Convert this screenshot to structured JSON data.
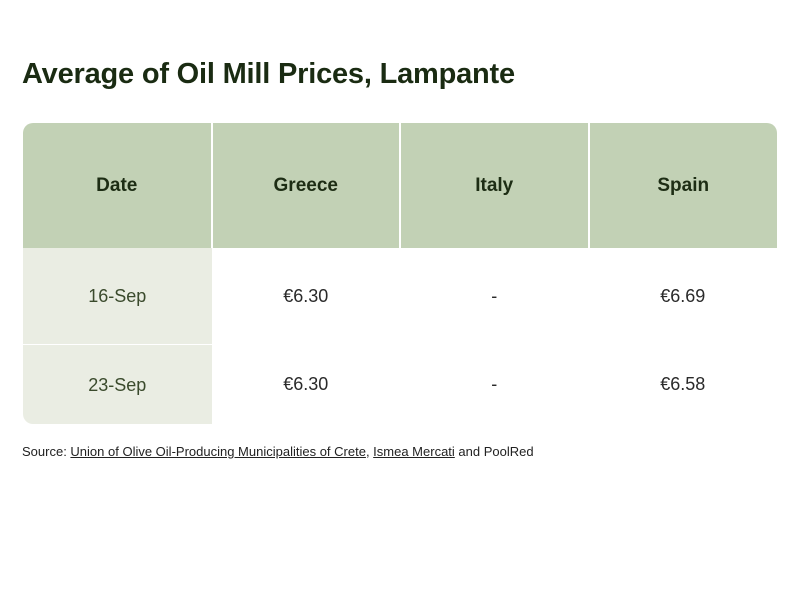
{
  "title": "Average of Oil Mill Prices, Lampante",
  "chart_data": {
    "type": "table",
    "title": "Average of Oil Mill Prices, Lampante",
    "columns": [
      "Date",
      "Greece",
      "Italy",
      "Spain"
    ],
    "rows": [
      [
        "16-Sep",
        "€6.30",
        "-",
        "€6.69"
      ],
      [
        "23-Sep",
        "€6.30",
        "-",
        "€6.58"
      ]
    ]
  },
  "source": {
    "prefix": "Source: ",
    "link1": "Union of Olive Oil-Producing Municipalities of Crete",
    "sep": ", ",
    "link2": "Ismea Mercati",
    "suffix": " and PoolRed"
  },
  "colors": {
    "header_bg": "#c2d1b5",
    "date_col_bg": "#eaede3",
    "title": "#1a2b12"
  }
}
